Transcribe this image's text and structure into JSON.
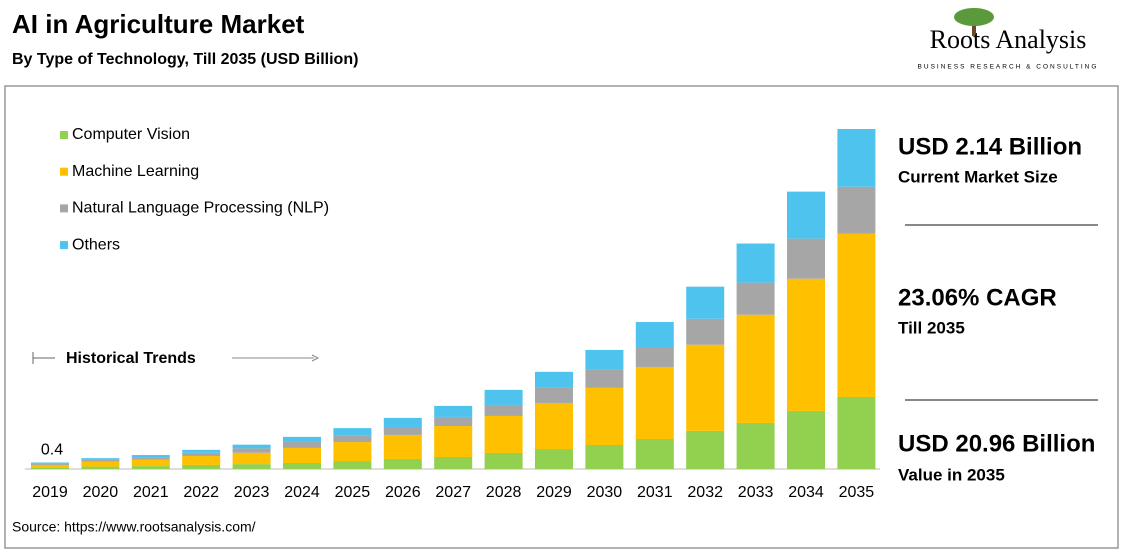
{
  "header": {
    "title": "AI in Agriculture Market",
    "subtitle": "By Type of Technology, Till 2035 (USD Billion)",
    "logo_name": "Roots Analysis",
    "logo_tagline": "BUSINESS RESEARCH & CONSULTING"
  },
  "chart_data": {
    "type": "stacked_bar",
    "categories": [
      "2019",
      "2020",
      "2021",
      "2022",
      "2023",
      "2024",
      "2025",
      "2026",
      "2027",
      "2028",
      "2029",
      "2030",
      "2031",
      "2032",
      "2033",
      "2034",
      "2035"
    ],
    "series": [
      {
        "name": "Computer Vision",
        "color": "#92d050",
        "values": [
          0.1,
          0.15,
          0.18,
          0.25,
          0.3,
          0.37,
          0.49,
          0.62,
          0.74,
          0.99,
          1.23,
          1.48,
          1.85,
          2.35,
          2.84,
          3.58,
          4.44
        ]
      },
      {
        "name": "Machine Learning",
        "color": "#ffc000",
        "values": [
          0.15,
          0.3,
          0.4,
          0.55,
          0.7,
          0.93,
          1.17,
          1.48,
          1.91,
          2.28,
          2.84,
          3.52,
          4.44,
          5.31,
          6.67,
          8.15,
          10.06
        ]
      },
      {
        "name": "Natural Language Processing (NLP)",
        "color": "#a6a6a6",
        "values": [
          0.08,
          0.12,
          0.15,
          0.2,
          0.27,
          0.37,
          0.43,
          0.49,
          0.56,
          0.68,
          0.93,
          1.11,
          1.23,
          1.6,
          1.98,
          2.47,
          2.9
        ]
      },
      {
        "name": "Others",
        "color": "#4ec3ee",
        "values": [
          0.07,
          0.1,
          0.13,
          0.18,
          0.23,
          0.31,
          0.43,
          0.56,
          0.68,
          0.93,
          0.99,
          1.23,
          1.54,
          1.98,
          2.41,
          2.9,
          3.56
        ]
      }
    ],
    "legend": "upper left",
    "first_total_label": 0.4,
    "annotation": "Historical Trends"
  },
  "highlights": [
    {
      "value": "USD 2.14 Billion",
      "label": "Current Market Size"
    },
    {
      "value": "23.06% CAGR",
      "label": "Till 2035"
    },
    {
      "value": "USD 20.96 Billion",
      "label": "Value in 2035"
    }
  ],
  "source": "Source: https://www.rootsanalysis.com/"
}
